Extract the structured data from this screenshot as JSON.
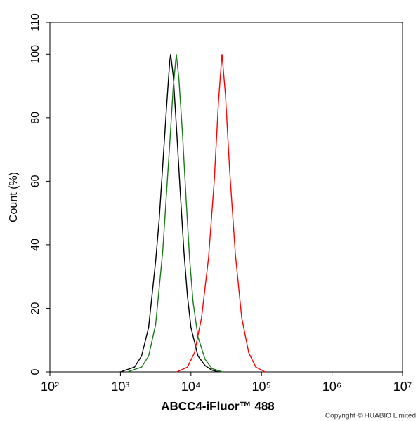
{
  "chart_data": {
    "type": "line",
    "xlabel": "ABCC4-iFluor™ 488",
    "ylabel": "Count  (%)",
    "footer": "Copyright © HUABIO Limited",
    "xscale": "log",
    "xlim": [
      100,
      10000000
    ],
    "xticks": [
      {
        "value": 100,
        "label": "10²"
      },
      {
        "value": 1000,
        "label": "10³"
      },
      {
        "value": 10000,
        "label": "10⁴"
      },
      {
        "value": 100000,
        "label": "10⁵"
      },
      {
        "value": 1000000,
        "label": "10⁶"
      },
      {
        "value": 10000000,
        "label": "10⁷"
      }
    ],
    "ylim": [
      0,
      110
    ],
    "yticks": [
      0,
      20,
      40,
      60,
      80,
      100,
      110
    ],
    "series": [
      {
        "color": "#000000",
        "x": [
          1000,
          1585,
          1995,
          2512,
          3162,
          3548,
          3981,
          4467,
          5012,
          5164,
          5623,
          6310,
          7079,
          7943,
          8913,
          10000,
          12589,
          15849,
          19953,
          25119
        ],
        "values": [
          0,
          1.5,
          5,
          14,
          35,
          48,
          65,
          82,
          98,
          100,
          93,
          75,
          56,
          38,
          24,
          14,
          5,
          2,
          0.5,
          0
        ]
      },
      {
        "color": "#1a7a1a",
        "x": [
          1259,
          1995,
          2512,
          3162,
          3981,
          4467,
          5012,
          5623,
          6209,
          6761,
          7586,
          8511,
          9550,
          10715,
          12589,
          15849,
          19953,
          28184
        ],
        "values": [
          0,
          1.5,
          5,
          15,
          38,
          55,
          72,
          90,
          100,
          92,
          75,
          55,
          36,
          22,
          11,
          4,
          1,
          0
        ]
      },
      {
        "color": "#ff0000",
        "x": [
          6310,
          8913,
          11220,
          14125,
          17783,
          21380,
          24547,
          27542,
          30903,
          35481,
          42658,
          52481,
          66069,
          83176,
          112202
        ],
        "values": [
          0,
          1.5,
          6,
          17,
          36,
          60,
          85,
          100,
          87,
          63,
          37,
          17,
          6,
          1.5,
          0
        ]
      }
    ]
  }
}
